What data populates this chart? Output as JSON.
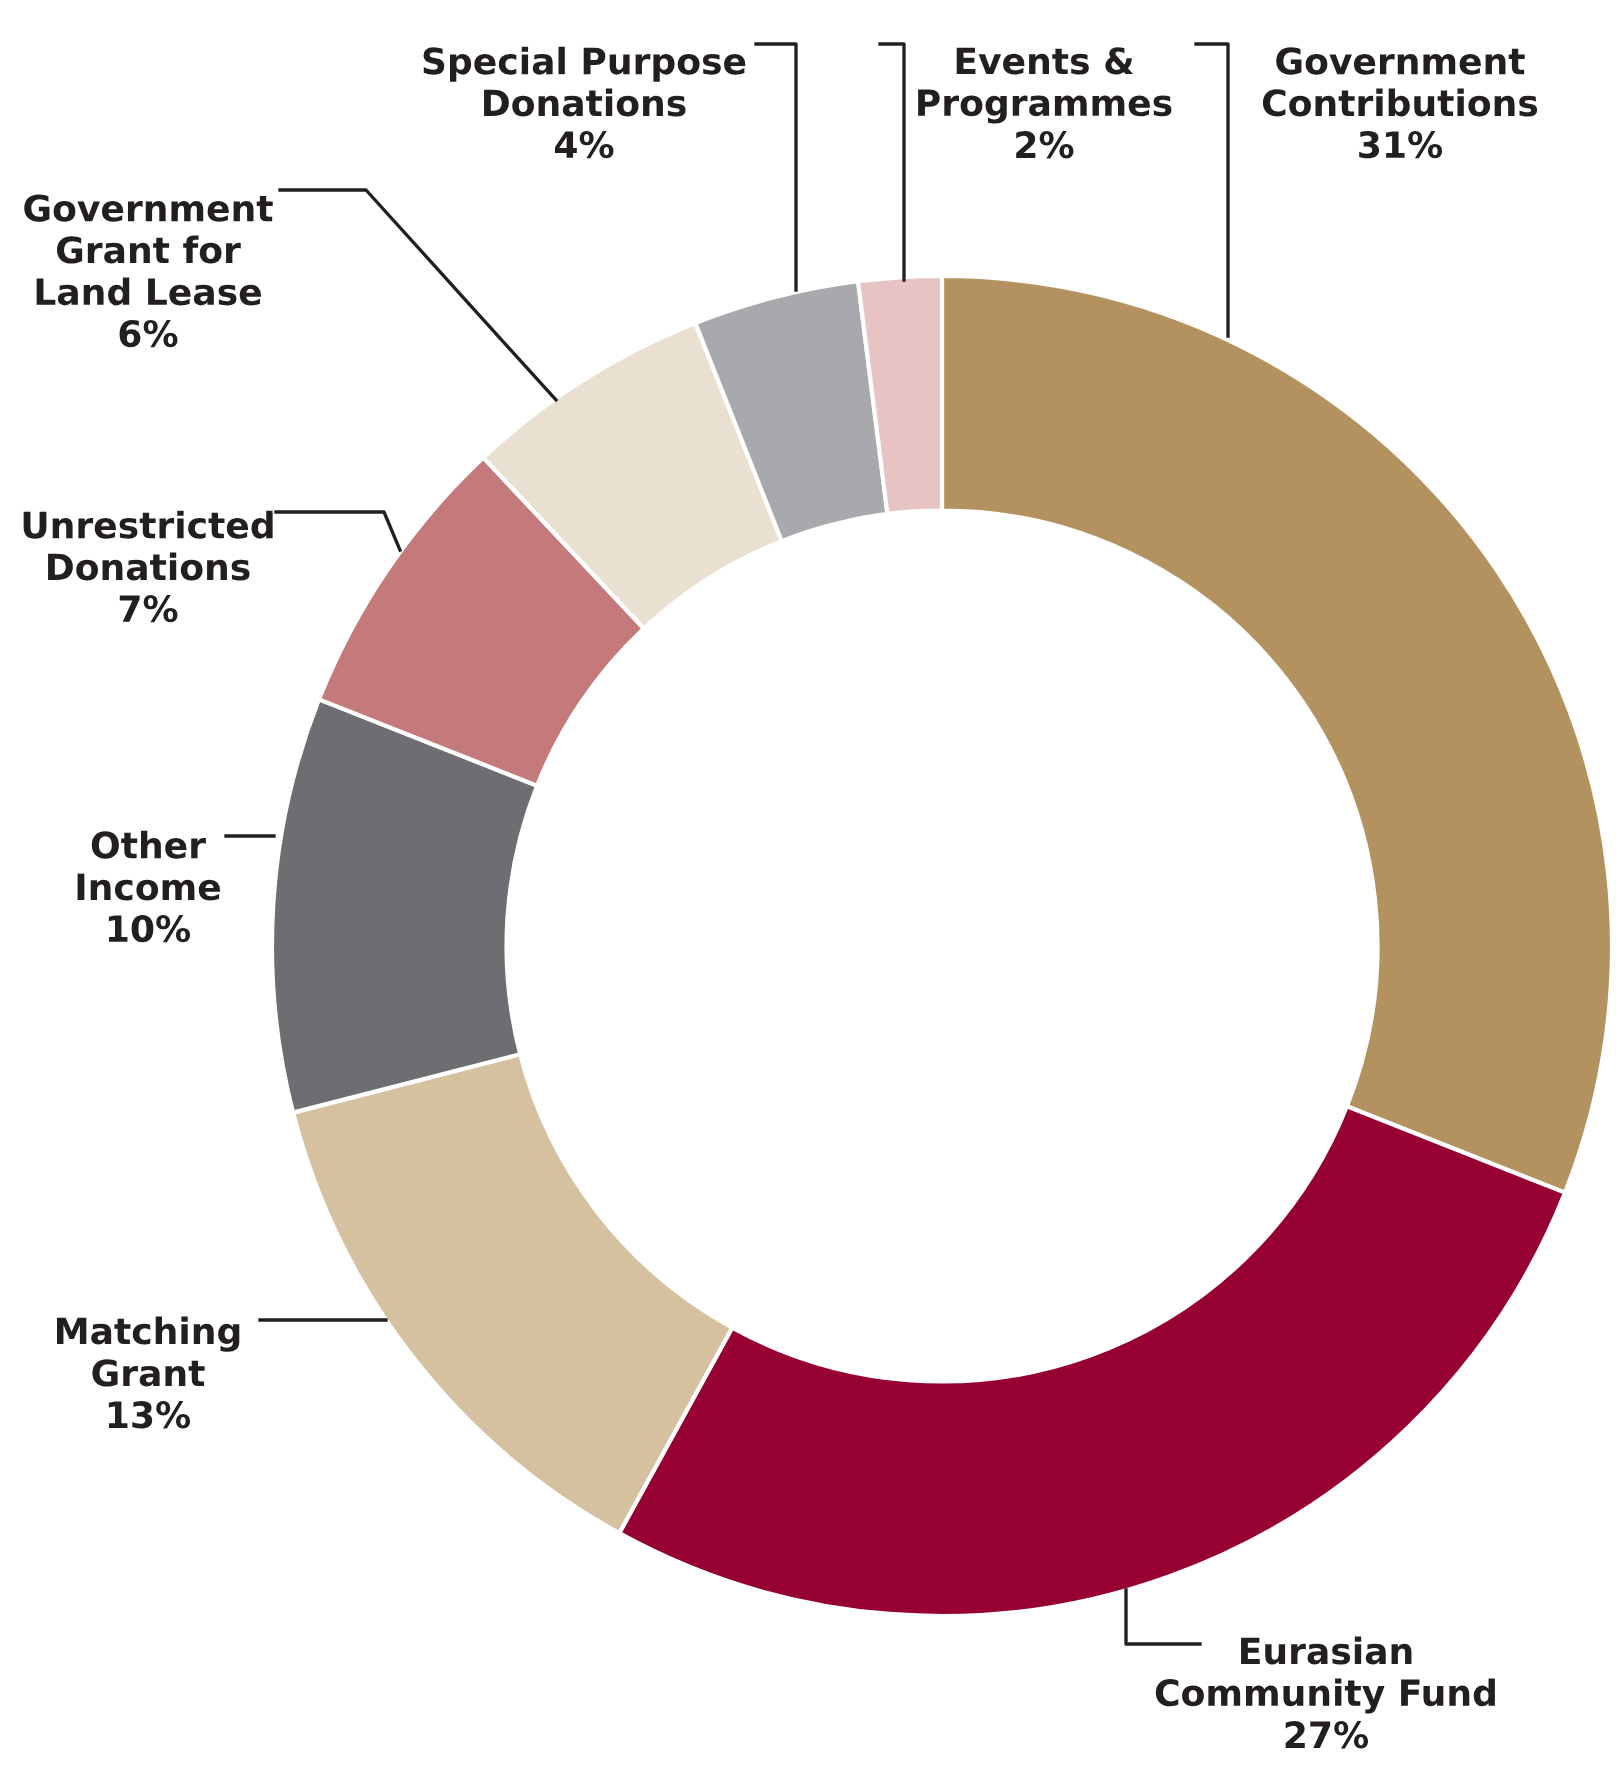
{
  "chart_data": {
    "type": "donut",
    "categories": [
      "Government\nContributions",
      "Eurasian\nCommunity Fund",
      "Matching\nGrant",
      "Other\nIncome",
      "Unrestricted\nDonations",
      "Government\nGrant for\nLand Lease",
      "Special Purpose\nDonations",
      "Events &\nProgrammes"
    ],
    "values": [
      31,
      27,
      13,
      10,
      7,
      6,
      4,
      2
    ],
    "value_labels": [
      "31%",
      "27%",
      "13%",
      "10%",
      "7%",
      "6%",
      "4%",
      "2%"
    ],
    "colors": [
      "#b39260",
      "#960032",
      "#d5c0a0",
      "#6d6e71",
      "#c47a7a",
      "#e9e0d2",
      "#a7a9ac",
      "#e8c3c3"
    ]
  }
}
